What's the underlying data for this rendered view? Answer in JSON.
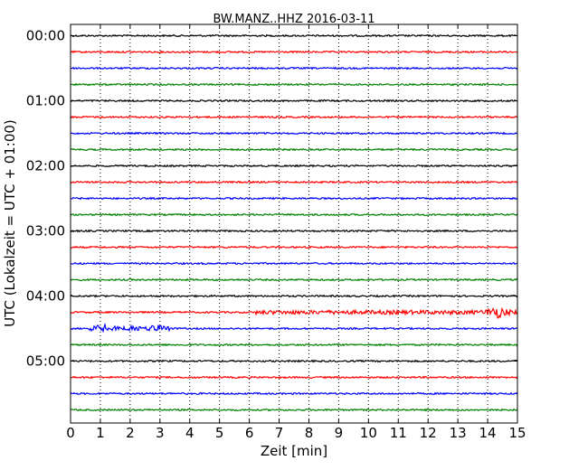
{
  "chart_data": {
    "type": "line",
    "title": "BW.MANZ..HHZ 2016-03-11",
    "xlabel": "Zeit  [min]",
    "ylabel": "UTC (Lokalzeit = UTC + 01:00)",
    "xlim": [
      0,
      15
    ],
    "x_ticks": [
      "0",
      "1",
      "2",
      "3",
      "4",
      "5",
      "6",
      "7",
      "8",
      "9",
      "10",
      "11",
      "12",
      "13",
      "14",
      "15"
    ],
    "y_tick_labels": [
      "00:00",
      "01:00",
      "02:00",
      "03:00",
      "04:00",
      "05:00"
    ],
    "trace_interval_min": 15,
    "trace_count": 24,
    "grid": "vertical dotted",
    "trace_colors": [
      "#000000",
      "#ff0000",
      "#0000ff",
      "#008000"
    ],
    "events": [
      {
        "trace_start": "04:15",
        "from_min": 6.2,
        "to_min": 15,
        "amplitude": "moderate",
        "peak_min": 14.3
      },
      {
        "trace_start": "04:30",
        "from_min": 0.6,
        "to_min": 3.4,
        "amplitude": "small"
      }
    ]
  }
}
